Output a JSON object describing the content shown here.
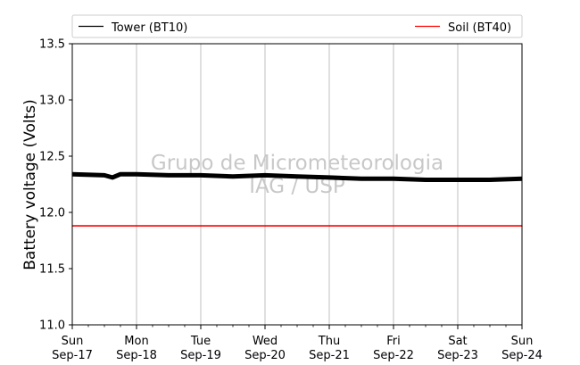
{
  "chart_data": {
    "type": "line",
    "title": "",
    "xlabel": "",
    "ylabel": "Battery voltage (Volts)",
    "ylim": [
      11.0,
      13.5
    ],
    "yticks": [
      "11.0",
      "11.5",
      "12.0",
      "12.5",
      "13.0",
      "13.5"
    ],
    "xlim": [
      "2017-09-17",
      "2017-09-24"
    ],
    "xticks": [
      {
        "day": "Sun",
        "date": "Sep-17"
      },
      {
        "day": "Mon",
        "date": "Sep-18"
      },
      {
        "day": "Tue",
        "date": "Sep-19"
      },
      {
        "day": "Wed",
        "date": "Sep-20"
      },
      {
        "day": "Thu",
        "date": "Sep-21"
      },
      {
        "day": "Fri",
        "date": "Sep-22"
      },
      {
        "day": "Sat",
        "date": "Sep-23"
      },
      {
        "day": "Sun",
        "date": "Sep-24"
      }
    ],
    "grid": "vertical",
    "legend": "top",
    "watermark": [
      "Grupo de Micrometeorologia",
      "IAG / USP"
    ],
    "series": [
      {
        "name": "Tower (BT10)",
        "color": "#000000",
        "x": [
          "2017-09-17 00:00",
          "2017-09-17 12:00",
          "2017-09-17 15:00",
          "2017-09-17 18:00",
          "2017-09-18 00:00",
          "2017-09-18 12:00",
          "2017-09-19 00:00",
          "2017-09-19 12:00",
          "2017-09-20 00:00",
          "2017-09-20 12:00",
          "2017-09-21 00:00",
          "2017-09-21 12:00",
          "2017-09-22 00:00",
          "2017-09-22 12:00",
          "2017-09-23 00:00",
          "2017-09-23 12:00",
          "2017-09-24 00:00"
        ],
        "y": [
          12.34,
          12.33,
          12.31,
          12.34,
          12.34,
          12.33,
          12.33,
          12.32,
          12.33,
          12.32,
          12.31,
          12.3,
          12.3,
          12.29,
          12.29,
          12.29,
          12.3
        ]
      },
      {
        "name": "Soil (BT40)",
        "color": "#ff0000",
        "x": [
          "2017-09-17 00:00",
          "2017-09-18 00:00",
          "2017-09-19 00:00",
          "2017-09-20 00:00",
          "2017-09-21 00:00",
          "2017-09-22 00:00",
          "2017-09-23 00:00",
          "2017-09-23 12:00",
          "2017-09-24 00:00"
        ],
        "y": [
          11.88,
          11.88,
          11.88,
          11.88,
          11.88,
          11.88,
          11.88,
          11.88,
          11.88
        ]
      }
    ]
  }
}
